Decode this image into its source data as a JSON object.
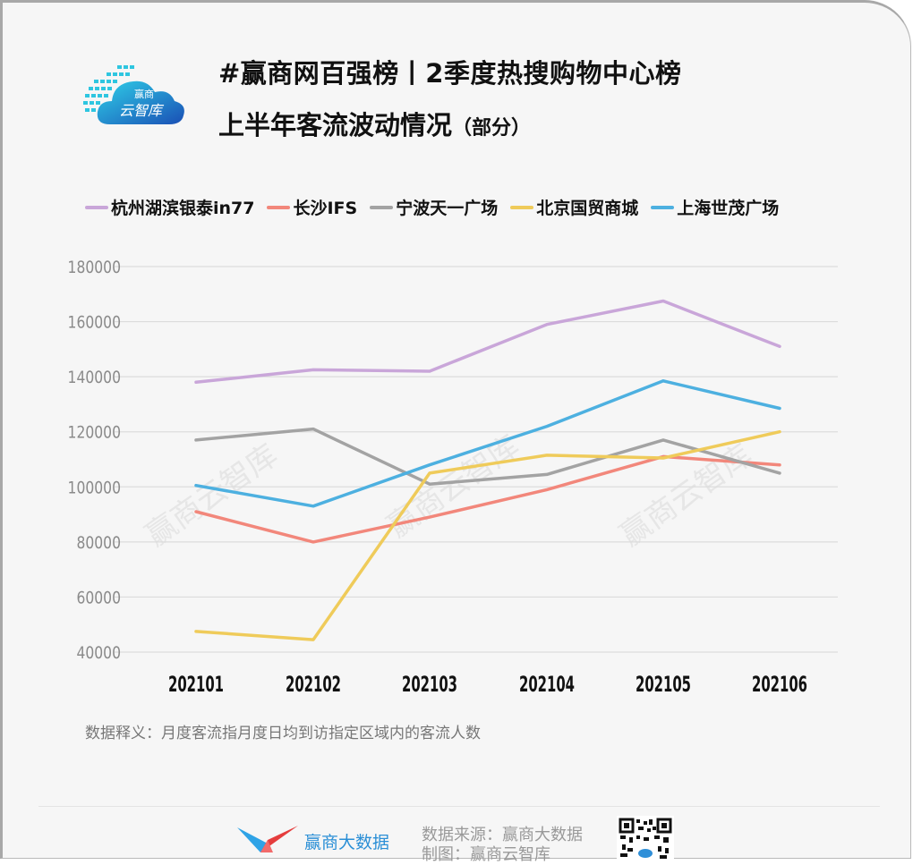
{
  "header": {
    "logo_text_top": "赢商",
    "logo_text_bottom": "云智库",
    "title_line1": "#赢商网百强榜丨2季度热搜购物中心榜",
    "title_line2": "上半年客流波动情况",
    "title_line2_suffix": "（部分）"
  },
  "legend": [
    {
      "label": "杭州湖滨银泰in77",
      "color": "#c9a6d9"
    },
    {
      "label": "长沙IFS",
      "color": "#f2877b"
    },
    {
      "label": "宁波天一广场",
      "color": "#a3a3a3"
    },
    {
      "label": "北京国贸商城",
      "color": "#efcb5a"
    },
    {
      "label": "上海世茂广场",
      "color": "#4db0e0"
    }
  ],
  "chart_data": {
    "type": "line",
    "title": "上半年客流波动情况（部分）",
    "xlabel": "",
    "ylabel": "",
    "categories": [
      "202101",
      "202102",
      "202103",
      "202104",
      "202105",
      "202106"
    ],
    "y_ticks": [
      "180000",
      "160000",
      "140000",
      "120000",
      "100000",
      "80000",
      "60000",
      "40000"
    ],
    "ylim": [
      40000,
      180000
    ],
    "grid": true,
    "legend_position": "top",
    "series": [
      {
        "name": "杭州湖滨银泰in77",
        "color": "#c9a6d9",
        "values": [
          138000,
          142500,
          142000,
          159000,
          167500,
          151000
        ]
      },
      {
        "name": "长沙IFS",
        "color": "#f2877b",
        "values": [
          91000,
          80000,
          89000,
          99000,
          111000,
          108000
        ]
      },
      {
        "name": "宁波天一广场",
        "color": "#a3a3a3",
        "values": [
          117000,
          121000,
          101000,
          104500,
          117000,
          105000
        ]
      },
      {
        "name": "北京国贸商城",
        "color": "#efcb5a",
        "values": [
          47500,
          44500,
          105000,
          111500,
          110500,
          120000
        ]
      },
      {
        "name": "上海世茂广场",
        "color": "#4db0e0",
        "values": [
          100500,
          93000,
          108000,
          122000,
          138500,
          128500
        ]
      }
    ]
  },
  "watermark": "赢商云智库",
  "note": "数据释义：月度客流指月度日均到访指定区域内的客流人数",
  "footer": {
    "brand_name": "赢商大数据",
    "source_line1": "数据来源：赢商大数据",
    "source_line2": "制图：赢商云智库"
  }
}
